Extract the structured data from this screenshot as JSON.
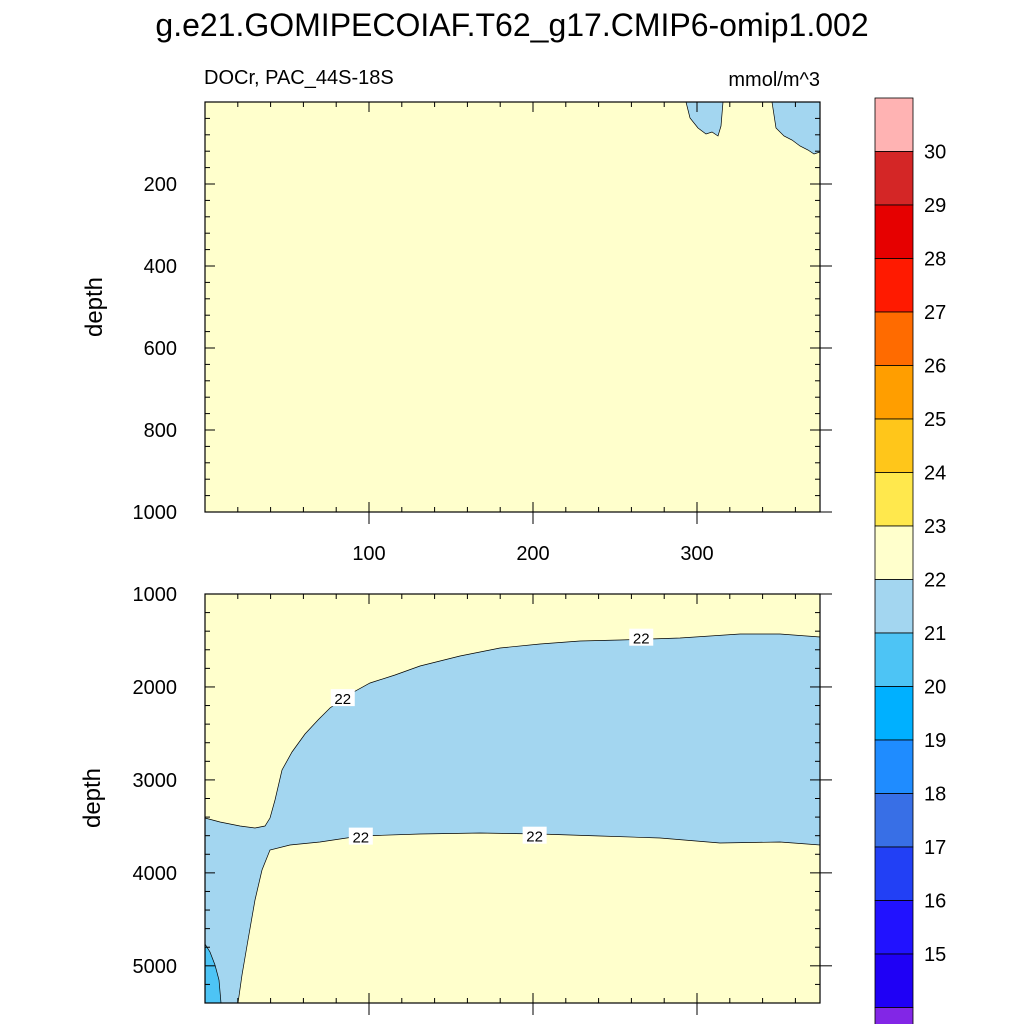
{
  "title": "g.e21.GOMIPECOIAF.T62_g17.CMIP6-omip1.002",
  "subtitle_left": "DOCr, PAC_44S-18S",
  "subtitle_right": "mmol/m^3",
  "colorbar": {
    "labels": [
      "30",
      "29",
      "28",
      "27",
      "26",
      "25",
      "24",
      "23",
      "22",
      "21",
      "20",
      "19",
      "18",
      "17",
      "16",
      "15"
    ],
    "colors": [
      "#FFB3B3",
      "#D42626",
      "#E60000",
      "#FF1A00",
      "#FF6B00",
      "#FF9E00",
      "#FFC61A",
      "#FFE84D",
      "#FFFFCC",
      "#A3D6F0",
      "#4DC4F5",
      "#00B0FF",
      "#1F8CFF",
      "#386FE6",
      "#2240F5",
      "#2112FF",
      "#1F00F5",
      "#8226E6"
    ]
  },
  "chart_data": [
    {
      "type": "contour",
      "panel": "upper",
      "ylabel": "depth",
      "xlim": [
        0,
        375
      ],
      "ylim": [
        1000,
        0
      ],
      "xticks": [
        "100",
        "200",
        "300"
      ],
      "yticks": [
        "200",
        "400",
        "600",
        "800",
        "1000"
      ],
      "background_level": "22-23",
      "regions": [
        {
          "level": "21-22",
          "description_x": [
            290,
            315
          ],
          "depth_max": 90
        },
        {
          "level": "21-22",
          "description_x": [
            345,
            375
          ],
          "depth_max": 130
        }
      ]
    },
    {
      "type": "contour",
      "panel": "lower",
      "ylabel": "depth",
      "xlim": [
        0,
        375
      ],
      "ylim": [
        5400,
        1000
      ],
      "xticks": [
        "100",
        "200",
        "300"
      ],
      "yticks": [
        "1000",
        "2000",
        "3000",
        "4000",
        "5000"
      ],
      "background_level": "22-23",
      "contour_labels": [
        {
          "text": "22",
          "x": 84,
          "depth": 2120
        },
        {
          "text": "22",
          "x": 266,
          "depth": 1470
        },
        {
          "text": "22",
          "x": 95,
          "depth": 3610
        },
        {
          "text": "22",
          "x": 201,
          "depth": 3600
        }
      ],
      "upper_boundary_22": {
        "x": [
          40,
          45,
          48,
          55,
          65,
          80,
          95,
          110,
          130,
          150,
          170,
          190,
          210,
          230,
          260,
          300,
          330,
          375
        ],
        "depth": [
          3490,
          3200,
          2900,
          2500,
          2300,
          2150,
          2000,
          1900,
          1780,
          1700,
          1650,
          1600,
          1560,
          1540,
          1500,
          1490,
          1460,
          1480
        ]
      },
      "lower_boundary_22": {
        "x": [
          0,
          20,
          40,
          45,
          55,
          70,
          100,
          140,
          200,
          260,
          320,
          375
        ],
        "depth": [
          3400,
          3460,
          3500,
          3720,
          3700,
          3690,
          3600,
          3560,
          3600,
          3630,
          3650,
          3670
        ]
      }
    }
  ]
}
